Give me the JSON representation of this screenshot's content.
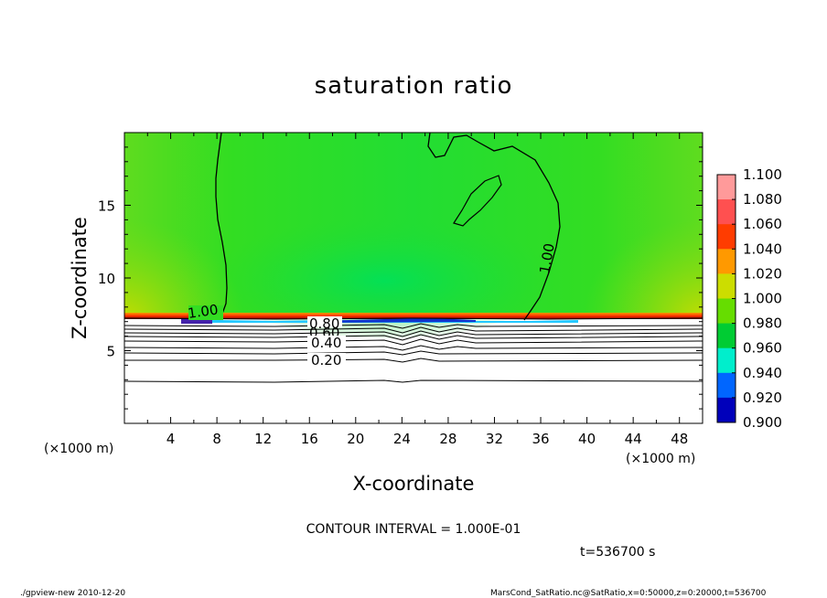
{
  "chart_data": {
    "type": "heatmap",
    "title": "saturation ratio",
    "xlabel": "X-coordinate",
    "ylabel": "Z-coordinate",
    "x_unit_note": "(×1000 m)",
    "x_unit_note_right": "(×1000 m)",
    "xlim": [
      0,
      50
    ],
    "ylim": [
      0,
      20
    ],
    "x_ticks": [
      "4",
      "8",
      "12",
      "16",
      "20",
      "24",
      "28",
      "32",
      "36",
      "40",
      "44",
      "48"
    ],
    "y_ticks": [
      "5",
      "10",
      "15"
    ],
    "colorbar": {
      "levels": [
        "1.100",
        "1.080",
        "1.060",
        "1.040",
        "1.020",
        "1.000",
        "0.980",
        "0.960",
        "0.940",
        "0.920",
        "0.900"
      ],
      "colors": [
        "#ff9a9a",
        "#ff5050",
        "#ff3c00",
        "#ff9900",
        "#ccdd00",
        "#66dd00",
        "#00cc33",
        "#00eecc",
        "#0066ff",
        "#0000bb",
        "#660099"
      ]
    },
    "contour_labels": [
      "1.00",
      "0.80",
      "0.60",
      "0.40",
      "0.20",
      "1.00"
    ],
    "contour_interval_text": "CONTOUR INTERVAL = 1.000E-01",
    "time_text": "t=536700 s",
    "footer_left": "./gpview-new  2010-12-20",
    "footer_right": "MarsCond_SatRatio.nc@SatRatio,x=0:50000,z=0:20000,t=536700"
  }
}
